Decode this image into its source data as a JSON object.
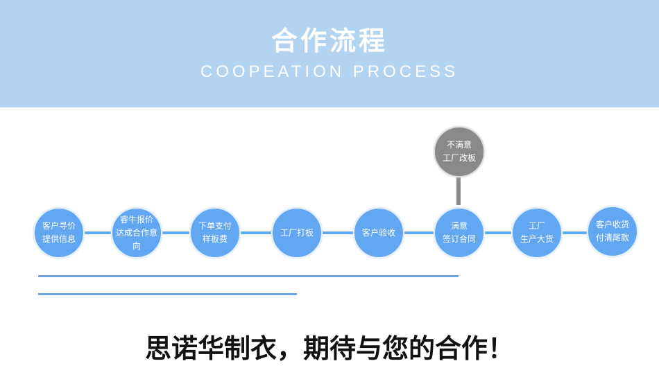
{
  "header": {
    "title": "合作流程",
    "subtitle": "COOPEATION PROCESS"
  },
  "steps": [
    {
      "line1": "客户寻价",
      "line2": "提供信息"
    },
    {
      "line1": "睿牛报价",
      "line2": "达成合作意向"
    },
    {
      "line1": "下单支付",
      "line2": "样板费"
    },
    {
      "line1": "工厂打板",
      "line2": ""
    },
    {
      "line1": "客户验收",
      "line2": ""
    },
    {
      "line1": "满意",
      "line2": "签订合同"
    },
    {
      "line1": "工厂",
      "line2": "生产大货"
    },
    {
      "line1": "客户收货",
      "line2": "付清尾款"
    }
  ],
  "branch": {
    "line1": "不满意",
    "line2": "工厂改板"
  },
  "slogan": "思诺华制衣，期待与您的合作！",
  "colors": {
    "header_bg": "#b2d4f1",
    "step": "#62a7f2",
    "branch": "#8a8a8a"
  }
}
